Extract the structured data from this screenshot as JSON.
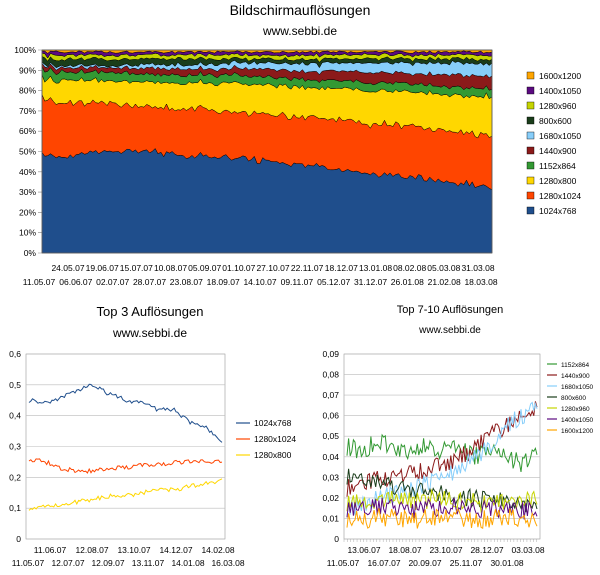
{
  "chart_data": [
    {
      "type": "area",
      "title": "Bildschirmauflösungen",
      "subtitle": "www.sebbi.de",
      "stacked": true,
      "percent": true,
      "ylim": [
        0,
        100
      ],
      "y_ticks": [
        "0%",
        "10%",
        "20%",
        "30%",
        "40%",
        "50%",
        "60%",
        "70%",
        "80%",
        "90%",
        "100%"
      ],
      "x_ticks_row1": [
        "24.05.07",
        "19.06.07",
        "15.07.07",
        "10.08.07",
        "05.09.07",
        "01.10.07",
        "27.10.07",
        "22.11.07",
        "18.12.07",
        "13.01.08",
        "08.02.08",
        "05.03.08",
        "31.03.08"
      ],
      "x_ticks_row2": [
        "11.05.07",
        "06.06.07",
        "02.07.07",
        "28.07.07",
        "23.08.07",
        "18.09.07",
        "14.10.07",
        "09.11.07",
        "05.12.07",
        "31.12.07",
        "26.01.08",
        "21.02.08",
        "18.03.08"
      ],
      "legend_position": "right",
      "legend": [
        "1600x1200",
        "1400x1050",
        "1280x960",
        "800x600",
        "1680x1050",
        "1440x900",
        "1152x864",
        "1280x800",
        "1280x1024",
        "1024x768"
      ],
      "series": [
        {
          "name": "1024x768",
          "color": "#1f4e8c",
          "start": 44,
          "end": 32,
          "anchors": [
            44,
            46,
            48,
            50,
            48,
            47,
            46,
            44,
            42,
            40,
            37,
            35,
            32
          ]
        },
        {
          "name": "1280x1024",
          "color": "#ff4500",
          "start": 26,
          "end": 25,
          "anchors": [
            26,
            24,
            22,
            22,
            23,
            23,
            24,
            24,
            25,
            25,
            25,
            25,
            25
          ]
        },
        {
          "name": "1280x800",
          "color": "#ffd700",
          "start": 10,
          "end": 19,
          "anchors": [
            10,
            11,
            11,
            12,
            13,
            14,
            14,
            15,
            16,
            17,
            17,
            18,
            19
          ]
        },
        {
          "name": "1152x864",
          "color": "#339933",
          "start": 4,
          "end": 4,
          "anchors": [
            4,
            4,
            4,
            4,
            4,
            4,
            4,
            4,
            4,
            4,
            4,
            4,
            4
          ]
        },
        {
          "name": "1440x900",
          "color": "#8b1a1a",
          "start": 2,
          "end": 6,
          "anchors": [
            2,
            2,
            2,
            3,
            3,
            3,
            4,
            4,
            5,
            5,
            5,
            6,
            6
          ]
        },
        {
          "name": "1680x1050",
          "color": "#87cefa",
          "start": 1,
          "end": 6,
          "anchors": [
            1,
            1,
            1,
            2,
            2,
            3,
            3,
            4,
            4,
            5,
            5,
            6,
            6
          ]
        },
        {
          "name": "800x600",
          "color": "#1a3d1a",
          "start": 3,
          "end": 2,
          "anchors": [
            3,
            3,
            3,
            3,
            3,
            2,
            2,
            2,
            2,
            2,
            2,
            2,
            2
          ]
        },
        {
          "name": "1280x960",
          "color": "#c5d400",
          "start": 2,
          "end": 2,
          "anchors": [
            2,
            2,
            2,
            2,
            2,
            2,
            2,
            2,
            2,
            2,
            2,
            2,
            2
          ]
        },
        {
          "name": "1400x1050",
          "color": "#5b0a80",
          "start": 1.5,
          "end": 1.5,
          "anchors": [
            1.5,
            1.5,
            1.5,
            1.5,
            1.5,
            1.5,
            1.5,
            1.5,
            1.5,
            1.5,
            1.5,
            1.5,
            1.5
          ]
        },
        {
          "name": "1600x1200",
          "color": "#ffa500",
          "start": 1,
          "end": 1,
          "anchors": [
            1,
            1,
            1,
            1,
            1,
            1,
            1,
            1,
            1,
            1,
            1,
            1,
            1
          ]
        }
      ]
    },
    {
      "type": "line",
      "title": "Top 3 Auflösungen",
      "subtitle": "www.sebbi.de",
      "ylim": [
        0,
        0.6
      ],
      "y_ticks": [
        "0",
        "0,1",
        "0,2",
        "0,3",
        "0,4",
        "0,5",
        "0,6"
      ],
      "x_ticks_row1": [
        "11.06.07",
        "12.08.07",
        "13.10.07",
        "14.12.07",
        "14.02.08"
      ],
      "x_ticks_row2": [
        "11.05.07",
        "12.07.07",
        "12.09.07",
        "13.11.07",
        "14.01.08",
        "16.03.08"
      ],
      "legend_position": "right",
      "series": [
        {
          "name": "1024x768",
          "color": "#1f4e8c",
          "anchors": [
            0.45,
            0.44,
            0.46,
            0.48,
            0.5,
            0.47,
            0.45,
            0.44,
            0.42,
            0.42,
            0.38,
            0.36,
            0.32
          ]
        },
        {
          "name": "1280x1024",
          "color": "#ff4500",
          "anchors": [
            0.26,
            0.25,
            0.23,
            0.22,
            0.22,
            0.23,
            0.23,
            0.24,
            0.24,
            0.25,
            0.25,
            0.25,
            0.25
          ]
        },
        {
          "name": "1280x800",
          "color": "#ffd700",
          "anchors": [
            0.1,
            0.11,
            0.11,
            0.12,
            0.13,
            0.14,
            0.14,
            0.15,
            0.16,
            0.16,
            0.17,
            0.18,
            0.19
          ]
        }
      ]
    },
    {
      "type": "line",
      "title": "Top 7-10 Auflösungen",
      "subtitle": "www.sebbi.de",
      "ylim": [
        0,
        0.09
      ],
      "y_ticks": [
        "0",
        "0,01",
        "0,02",
        "0,03",
        "0,04",
        "0,05",
        "0,06",
        "0,07",
        "0,08",
        "0,09"
      ],
      "x_ticks_row1": [
        "13.06.07",
        "18.08.07",
        "23.10.07",
        "28.12.07",
        "03.03.08"
      ],
      "x_ticks_row2": [
        "11.05.07",
        "16.07.07",
        "20.09.07",
        "25.11.07",
        "30.01.08"
      ],
      "legend_position": "right",
      "series": [
        {
          "name": "1152x864",
          "color": "#339933",
          "anchors": [
            0.045,
            0.043,
            0.048,
            0.044,
            0.042,
            0.045,
            0.043,
            0.044,
            0.04,
            0.042,
            0.04,
            0.037,
            0.04
          ]
        },
        {
          "name": "1440x900",
          "color": "#8b1a1a",
          "anchors": [
            0.025,
            0.027,
            0.03,
            0.03,
            0.032,
            0.033,
            0.036,
            0.04,
            0.043,
            0.05,
            0.055,
            0.06,
            0.064
          ]
        },
        {
          "name": "1680x1050",
          "color": "#87cefa",
          "anchors": [
            0.015,
            0.016,
            0.02,
            0.022,
            0.023,
            0.028,
            0.03,
            0.033,
            0.04,
            0.045,
            0.055,
            0.06,
            0.064
          ]
        },
        {
          "name": "800x600",
          "color": "#1a3d1a",
          "anchors": [
            0.031,
            0.029,
            0.027,
            0.025,
            0.024,
            0.023,
            0.022,
            0.021,
            0.02,
            0.019,
            0.018,
            0.017,
            0.016
          ]
        },
        {
          "name": "1280x960",
          "color": "#c5d400",
          "anchors": [
            0.018,
            0.017,
            0.019,
            0.02,
            0.018,
            0.019,
            0.02,
            0.018,
            0.018,
            0.017,
            0.019,
            0.018,
            0.019
          ]
        },
        {
          "name": "1400x1050",
          "color": "#5b0a80",
          "anchors": [
            0.015,
            0.014,
            0.016,
            0.015,
            0.014,
            0.015,
            0.014,
            0.016,
            0.015,
            0.014,
            0.015,
            0.014,
            0.014
          ]
        },
        {
          "name": "1600x1200",
          "color": "#ffa500",
          "anchors": [
            0.01,
            0.009,
            0.011,
            0.01,
            0.009,
            0.01,
            0.011,
            0.01,
            0.009,
            0.01,
            0.011,
            0.01,
            0.01
          ]
        }
      ]
    }
  ]
}
